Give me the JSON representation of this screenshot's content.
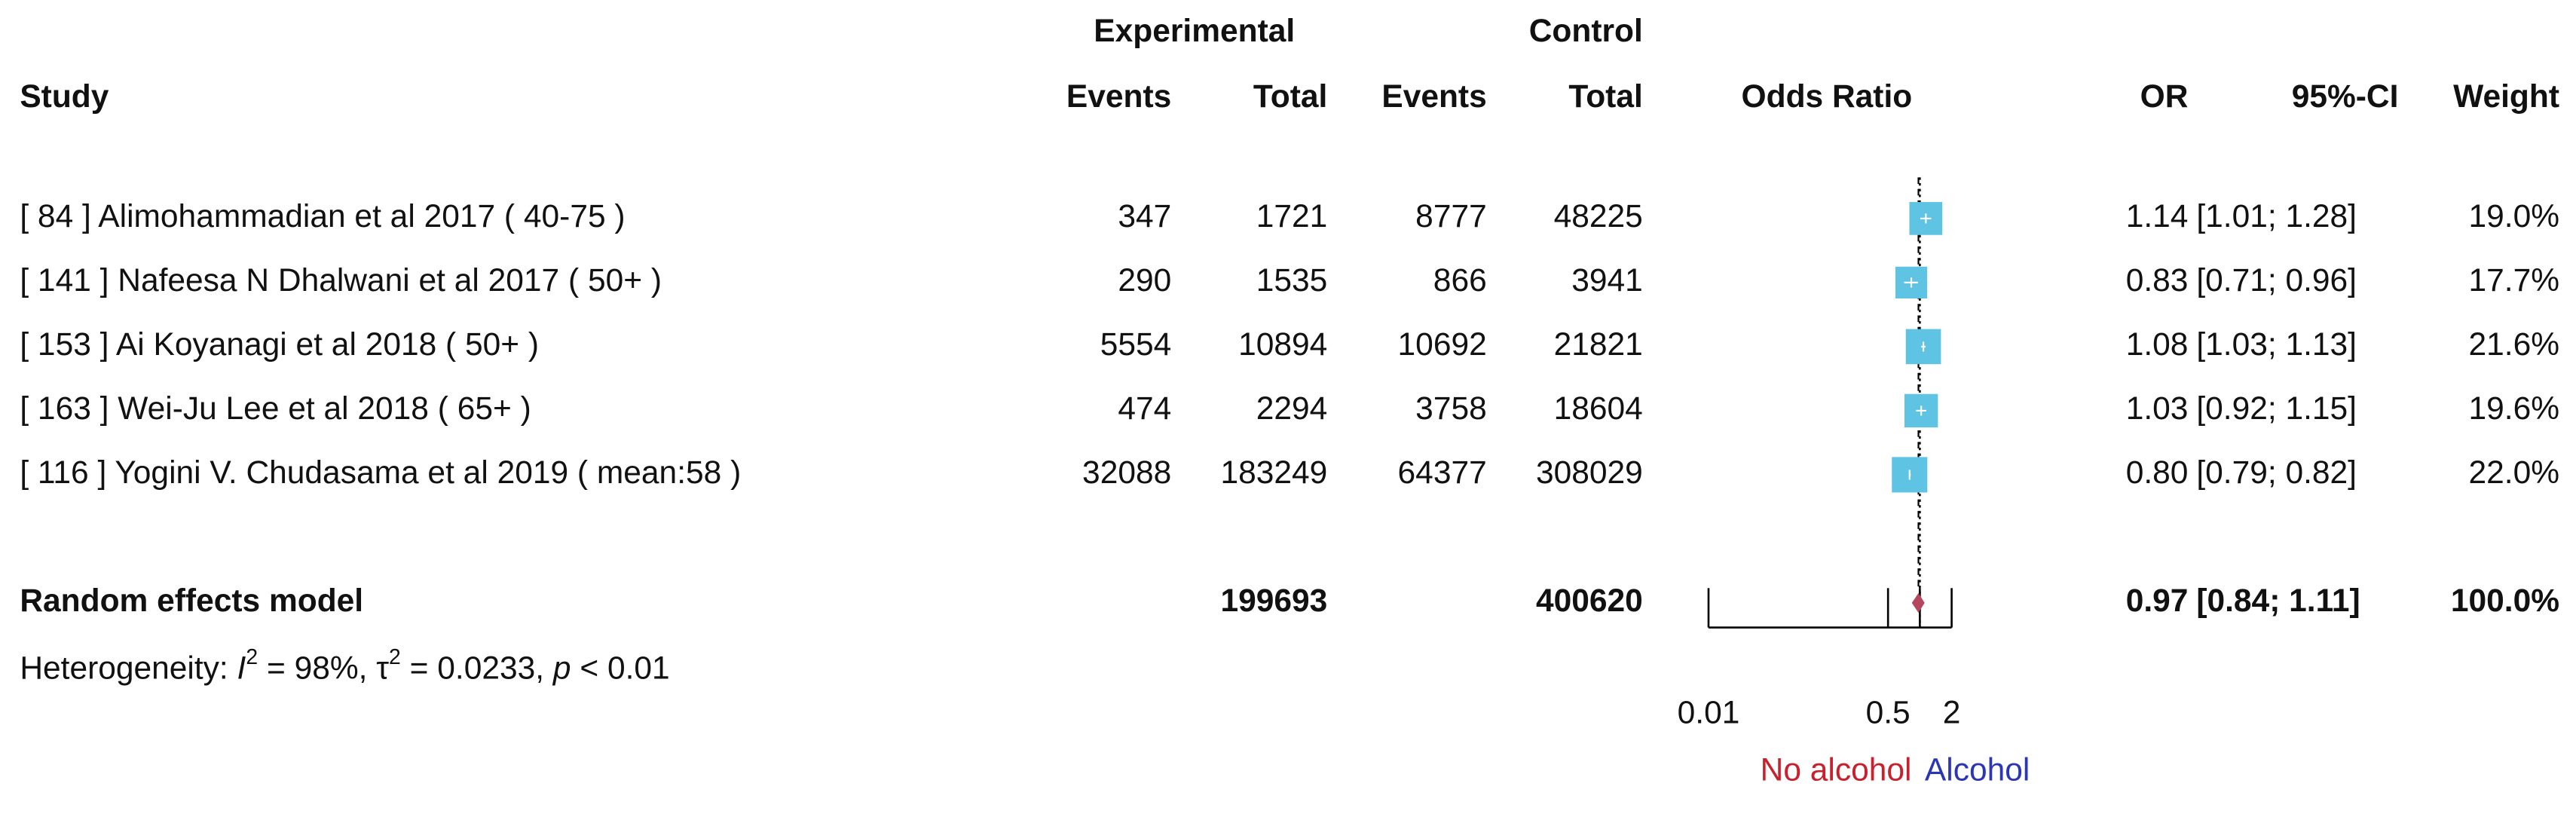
{
  "chart_data": {
    "type": "forest",
    "group_headers": {
      "experimental": "Experimental",
      "control": "Control"
    },
    "headers": {
      "study": "Study",
      "exp_events": "Events",
      "exp_total": "Total",
      "ctrl_events": "Events",
      "ctrl_total": "Total",
      "plot": "Odds Ratio",
      "or": "OR",
      "ci": "95%-CI",
      "weight": "Weight"
    },
    "studies": [
      {
        "name": "[ 84 ] Alimohammadian et al 2017 ( 40-75 )",
        "exp_events": 347,
        "exp_total": 1721,
        "ctrl_events": 8777,
        "ctrl_total": 48225,
        "or": 1.14,
        "ci": [
          1.01,
          1.28
        ],
        "ci_label": "[1.01; 1.28]",
        "weight": 19.0,
        "weight_label": "19.0%"
      },
      {
        "name": "[ 141 ] Nafeesa N Dhalwani et al 2017 ( 50+ )",
        "exp_events": 290,
        "exp_total": 1535,
        "ctrl_events": 866,
        "ctrl_total": 3941,
        "or": 0.83,
        "ci": [
          0.71,
          0.96
        ],
        "ci_label": "[0.71; 0.96]",
        "weight": 17.7,
        "weight_label": "17.7%"
      },
      {
        "name": "[ 153 ] Ai Koyanagi et al 2018 ( 50+ )",
        "exp_events": 5554,
        "exp_total": 10894,
        "ctrl_events": 10692,
        "ctrl_total": 21821,
        "or": 1.08,
        "ci": [
          1.03,
          1.13
        ],
        "ci_label": "[1.03; 1.13]",
        "weight": 21.6,
        "weight_label": "21.6%"
      },
      {
        "name": "[ 163 ] Wei-Ju Lee et al 2018 ( 65+ )",
        "exp_events": 474,
        "exp_total": 2294,
        "ctrl_events": 3758,
        "ctrl_total": 18604,
        "or": 1.03,
        "ci": [
          0.92,
          1.15
        ],
        "ci_label": "[0.92; 1.15]",
        "weight": 19.6,
        "weight_label": "19.6%"
      },
      {
        "name": "[ 116 ] Yogini V. Chudasama et al 2019 ( mean:58 )",
        "exp_events": 32088,
        "exp_total": 183249,
        "ctrl_events": 64377,
        "ctrl_total": 308029,
        "or": 0.8,
        "or_label": "0.80",
        "ci": [
          0.79,
          0.82
        ],
        "ci_label": "[0.79; 0.82]",
        "weight": 22.0,
        "weight_label": "22.0%"
      }
    ],
    "pooled": {
      "name": "Random effects model",
      "exp_total": 199693,
      "ctrl_total": 400620,
      "or": 0.97,
      "ci": [
        0.84,
        1.11
      ],
      "ci_label": "[0.84; 1.11]",
      "weight": 100,
      "weight_label": "100.0%"
    },
    "heterogeneity": [
      "Heterogeneity: ",
      "I",
      "2",
      " = 98%, ",
      "τ",
      "2",
      " = 0.0233, ",
      "p",
      " < 0.01"
    ],
    "xlim": [
      0.01,
      2
    ],
    "xticks": [
      0.01,
      0.5,
      2
    ],
    "log_x": true,
    "reference": 1,
    "x_labels": {
      "left": "No alcohol",
      "right": "Alcohol"
    },
    "colors": {
      "square": "#5fc3e4",
      "diamond": "#b4475e",
      "left_label": "#c8202c",
      "right_label": "#2b36b5"
    }
  }
}
